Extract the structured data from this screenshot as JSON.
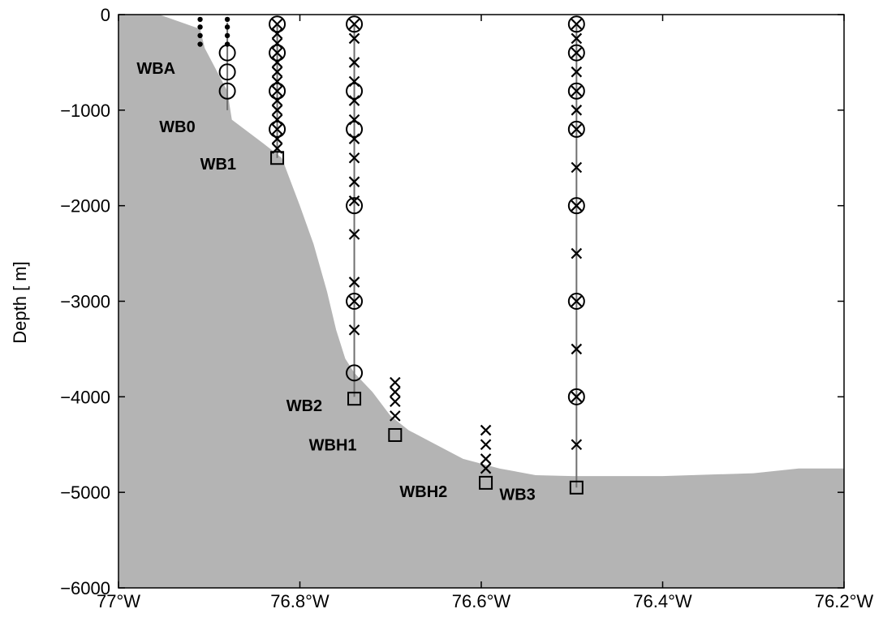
{
  "chart_data": {
    "type": "scatter",
    "title": "",
    "xlabel": "",
    "ylabel": "Depth [ m]",
    "xlim": [
      -77.0,
      -76.2
    ],
    "ylim": [
      -6000,
      0
    ],
    "grid": false,
    "legend": "none",
    "x_ticks": [
      {
        "value": -77.0,
        "label": "77°W"
      },
      {
        "value": -76.8,
        "label": "76.8°W"
      },
      {
        "value": -76.6,
        "label": "76.6°W"
      },
      {
        "value": -76.4,
        "label": "76.4°W"
      },
      {
        "value": -76.2,
        "label": "76.2°W"
      }
    ],
    "y_ticks": [
      {
        "value": 0,
        "label": "0"
      },
      {
        "value": -1000,
        "label": "−1000"
      },
      {
        "value": -2000,
        "label": "−2000"
      },
      {
        "value": -3000,
        "label": "−3000"
      },
      {
        "value": -4000,
        "label": "−4000"
      },
      {
        "value": -5000,
        "label": "−5000"
      },
      {
        "value": -6000,
        "label": "−6000"
      }
    ],
    "bathymetry": [
      [
        -77.0,
        0
      ],
      [
        -76.955,
        0
      ],
      [
        -76.91,
        -150
      ],
      [
        -76.905,
        -350
      ],
      [
        -76.88,
        -800
      ],
      [
        -76.875,
        -1100
      ],
      [
        -76.84,
        -1350
      ],
      [
        -76.82,
        -1500
      ],
      [
        -76.8,
        -2000
      ],
      [
        -76.785,
        -2400
      ],
      [
        -76.77,
        -2900
      ],
      [
        -76.76,
        -3300
      ],
      [
        -76.75,
        -3600
      ],
      [
        -76.74,
        -3750
      ],
      [
        -76.72,
        -3950
      ],
      [
        -76.7,
        -4200
      ],
      [
        -76.68,
        -4350
      ],
      [
        -76.65,
        -4500
      ],
      [
        -76.62,
        -4650
      ],
      [
        -76.58,
        -4750
      ],
      [
        -76.54,
        -4820
      ],
      [
        -76.5,
        -4830
      ],
      [
        -76.4,
        -4830
      ],
      [
        -76.3,
        -4800
      ],
      [
        -76.25,
        -4750
      ],
      [
        -76.2,
        -4750
      ]
    ],
    "colors": {
      "bathymetry": "#b4b4b4",
      "mooring_line": "#707070",
      "marker": "#000000"
    },
    "moorings": [
      {
        "name": "WBA",
        "x": -76.91,
        "bottom": -350,
        "show_line": false,
        "label": {
          "x": -76.98,
          "y": -620
        },
        "dots": [
          -50,
          -130,
          -220,
          -310
        ],
        "circles": [],
        "crosses": [],
        "square": null
      },
      {
        "name": "WB0",
        "x": -76.88,
        "bottom": -1000,
        "show_line": true,
        "label": {
          "x": -76.955,
          "y": -1230
        },
        "dots": [
          -50,
          -130,
          -220,
          -310
        ],
        "circles": [
          -400,
          -600,
          -800
        ],
        "crosses": [],
        "square": null
      },
      {
        "name": "WB1",
        "x": -76.825,
        "bottom": -1500,
        "show_line": true,
        "label": {
          "x": -76.91,
          "y": -1620
        },
        "dots": [],
        "circles": [
          -100,
          -400,
          -800,
          -1200
        ],
        "crosses": [
          -100,
          -200,
          -300,
          -400,
          -500,
          -600,
          -700,
          -800,
          -900,
          -1000,
          -1100,
          -1200,
          -1300,
          -1400
        ],
        "square": -1500
      },
      {
        "name": "WB2",
        "x": -76.74,
        "bottom": -4000,
        "show_line": true,
        "label": {
          "x": -76.815,
          "y": -4150
        },
        "dots": [],
        "circles": [
          -100,
          -800,
          -1200,
          -2000,
          -3000,
          -3750
        ],
        "crosses": [
          -100,
          -250,
          -500,
          -700,
          -900,
          -1100,
          -1300,
          -1500,
          -1750,
          -1950,
          -2300,
          -2800,
          -3000,
          -3300
        ],
        "square": -4020
      },
      {
        "name": "WBH1",
        "x": -76.695,
        "bottom": -4400,
        "show_line": false,
        "label": {
          "x": -76.79,
          "y": -4560
        },
        "dots": [],
        "circles": [],
        "crosses": [
          -3850,
          -3950,
          -4050,
          -4200
        ],
        "square": -4400
      },
      {
        "name": "WBH2",
        "x": -76.595,
        "bottom": -4900,
        "show_line": false,
        "label": {
          "x": -76.69,
          "y": -5050
        },
        "dots": [],
        "circles": [],
        "crosses": [
          -4350,
          -4500,
          -4650,
          -4750
        ],
        "square": -4900
      },
      {
        "name": "WB3",
        "x": -76.495,
        "bottom": -4950,
        "show_line": true,
        "label": {
          "x": -76.58,
          "y": -5080
        },
        "dots": [],
        "circles": [
          -100,
          -400,
          -800,
          -1200,
          -2000,
          -3000,
          -4000
        ],
        "crosses": [
          -100,
          -250,
          -400,
          -600,
          -800,
          -1000,
          -1200,
          -1600,
          -2000,
          -2500,
          -3000,
          -3500,
          -4000,
          -4500
        ],
        "square": -4950
      }
    ]
  }
}
